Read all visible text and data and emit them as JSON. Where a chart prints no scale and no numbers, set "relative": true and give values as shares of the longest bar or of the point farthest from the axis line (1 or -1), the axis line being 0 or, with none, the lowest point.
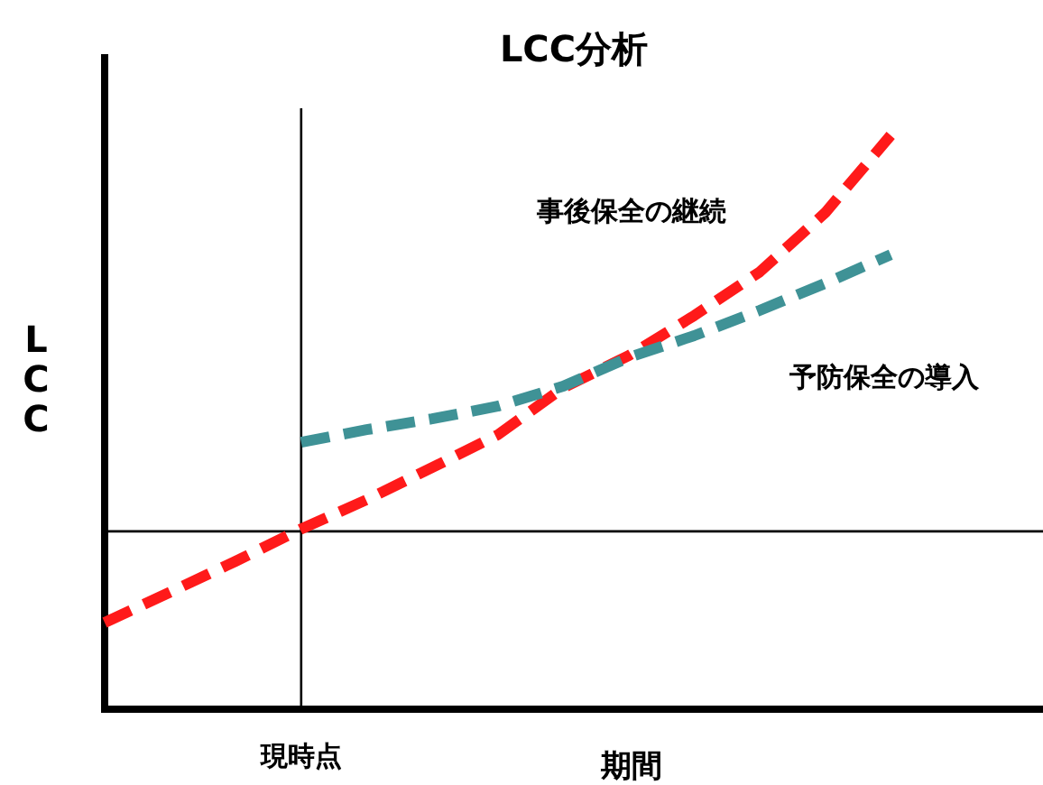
{
  "chart_data": {
    "type": "line",
    "title": "LCC分析",
    "xlabel": "期間",
    "ylabel": "LCC",
    "relative": true,
    "legend": false,
    "line_style": "dashed",
    "marker": "none",
    "categories": [
      null,
      null,
      null,
      null,
      null,
      null,
      null,
      null,
      null,
      null,
      null,
      null,
      null
    ],
    "annotations": [
      "現時点"
    ],
    "series": [
      {
        "name": "事後保全の継続",
        "color": "#ff1a1a",
        "values": [
          0.151,
          0.204,
          0.258,
          0.314,
          0.365,
          0.421,
          0.478,
          0.56,
          0.616,
          0.686,
          0.762,
          0.865,
          1
        ]
      },
      {
        "name": "予防保全の導入",
        "color": "#3f9296",
        "values": [
          null,
          null,
          null,
          0.465,
          0.487,
          0.506,
          0.528,
          0.563,
          0.613,
          0.651,
          0.695,
          0.742,
          0.792
        ]
      }
    ],
    "ref_lines": [
      {
        "axis": "y",
        "value": 0.31,
        "color": "#000000"
      }
    ]
  }
}
